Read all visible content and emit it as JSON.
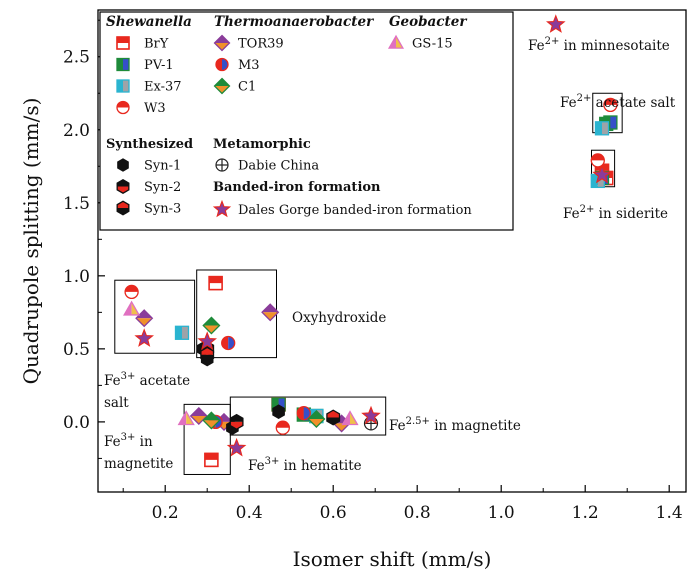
{
  "chart_data": {
    "type": "scatter",
    "xlabel": "Isomer shift (mm/s)",
    "ylabel": "Quadrupole splitting (mm/s)",
    "xlim": [
      0.04,
      1.44
    ],
    "ylim": [
      -0.48,
      2.82
    ],
    "xticks": [
      "0.2",
      "0.4",
      "0.6",
      "0.8",
      "1.0",
      "1.2",
      "1.4"
    ],
    "yticks": [
      "0.0",
      "0.5",
      "1.0",
      "1.5",
      "2.0",
      "2.5"
    ],
    "legend_position": "top-left",
    "legend_groups": [
      {
        "heading": "Shewanella",
        "italic": true,
        "entries": [
          "BrY",
          "PV-1",
          "Ex-37",
          "W3"
        ]
      },
      {
        "heading": "Thermoanaerobacter",
        "italic": true,
        "entries": [
          "TOR39",
          "M3",
          "C1"
        ]
      },
      {
        "heading": "Geobacter",
        "italic": true,
        "entries": [
          "GS-15"
        ]
      },
      {
        "heading": "Synthesized",
        "italic": false,
        "entries": [
          "Syn-1",
          "Syn-2",
          "Syn-3"
        ]
      },
      {
        "heading": "Metamorphic",
        "italic": false,
        "entries": [
          "Dabie China"
        ]
      },
      {
        "heading": "Banded-iron formation",
        "italic": false,
        "entries": [
          "Dales Gorge banded-iron formation"
        ]
      }
    ],
    "series": [
      {
        "name": "BrY",
        "marker": "square-half-red",
        "points": [
          [
            0.31,
            -0.26
          ],
          [
            0.32,
            0.95
          ],
          [
            0.47,
            0.12
          ],
          [
            1.24,
            1.72
          ],
          [
            1.25,
            1.67
          ]
        ]
      },
      {
        "name": "PV-1",
        "marker": "square-half-green",
        "points": [
          [
            0.47,
            0.12
          ],
          [
            0.53,
            0.05
          ],
          [
            0.56,
            0.04
          ],
          [
            1.25,
            2.04
          ],
          [
            1.26,
            2.05
          ],
          [
            1.24,
            1.67
          ]
        ]
      },
      {
        "name": "Ex-37",
        "marker": "square-half-cyan",
        "points": [
          [
            0.24,
            0.61
          ],
          [
            0.56,
            0.04
          ],
          [
            1.24,
            2.01
          ],
          [
            1.23,
            1.65
          ]
        ]
      },
      {
        "name": "W3",
        "marker": "circle-half-red",
        "points": [
          [
            0.12,
            0.89
          ],
          [
            0.48,
            -0.04
          ],
          [
            1.26,
            2.17
          ],
          [
            1.23,
            1.79
          ]
        ]
      },
      {
        "name": "TOR39",
        "marker": "diamond-half-purple",
        "points": [
          [
            0.15,
            0.71
          ],
          [
            0.45,
            0.75
          ],
          [
            0.28,
            0.04
          ],
          [
            0.62,
            -0.01
          ],
          [
            0.34,
            0.0
          ]
        ]
      },
      {
        "name": "M3",
        "marker": "circle-half-blue",
        "points": [
          [
            0.35,
            0.54
          ],
          [
            0.32,
            0.0
          ],
          [
            0.53,
            0.06
          ]
        ]
      },
      {
        "name": "C1",
        "marker": "diamond-half-green",
        "points": [
          [
            0.31,
            0.66
          ],
          [
            0.31,
            0.01
          ],
          [
            0.56,
            0.02
          ]
        ]
      },
      {
        "name": "GS-15",
        "marker": "triangle-half-pink",
        "points": [
          [
            0.12,
            0.77
          ],
          [
            0.25,
            0.02
          ],
          [
            0.64,
            0.02
          ]
        ]
      },
      {
        "name": "Syn-1",
        "marker": "hexagon-black",
        "points": [
          [
            0.29,
            0.5
          ],
          [
            0.3,
            0.43
          ],
          [
            0.47,
            0.07
          ],
          [
            0.36,
            -0.04
          ]
        ]
      },
      {
        "name": "Syn-2",
        "marker": "hexagon-half-red",
        "points": [
          [
            0.3,
            0.5
          ],
          [
            0.37,
            0.0
          ]
        ]
      },
      {
        "name": "Syn-3",
        "marker": "hexagon-half-black",
        "points": [
          [
            0.6,
            0.03
          ],
          [
            0.3,
            0.46
          ]
        ]
      },
      {
        "name": "Dabie China",
        "marker": "crossed-circle",
        "points": [
          [
            0.69,
            -0.01
          ]
        ]
      },
      {
        "name": "Dales Gorge banded-iron formation",
        "marker": "star",
        "points": [
          [
            0.15,
            0.57
          ],
          [
            0.3,
            0.55
          ],
          [
            0.37,
            -0.18
          ],
          [
            0.69,
            0.04
          ],
          [
            1.13,
            2.72
          ],
          [
            1.24,
            1.69
          ]
        ]
      }
    ],
    "annotations": [
      {
        "base": "Fe",
        "sup": "2+",
        "rest": " in minnesotaite"
      },
      {
        "base": "Fe",
        "sup": "2+",
        "rest": " acetate salt"
      },
      {
        "base": "Fe",
        "sup": "2+",
        "rest": " in siderite"
      },
      {
        "base": "",
        "sup": "",
        "rest": "Oxyhydroxide"
      },
      {
        "base": "Fe",
        "sup": "3+",
        "rest": " acetate"
      },
      {
        "base": "",
        "sup": "",
        "rest": "salt"
      },
      {
        "base": "Fe",
        "sup": "3+",
        "rest": " in"
      },
      {
        "base": "",
        "sup": "",
        "rest": "magnetite"
      },
      {
        "base": "Fe",
        "sup": "3+",
        "rest": " in hematite"
      },
      {
        "base": "Fe",
        "sup": "2.5+",
        "rest": " in magnetite"
      }
    ]
  }
}
